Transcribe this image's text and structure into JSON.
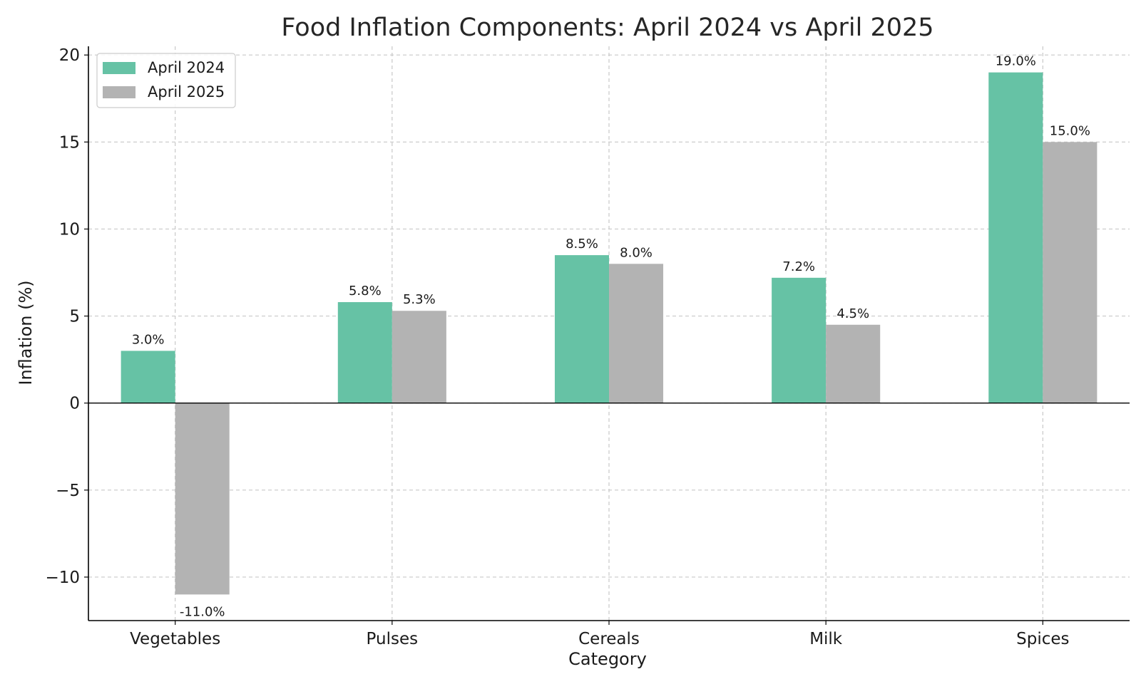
{
  "chart_data": {
    "type": "bar",
    "title": "Food Inflation Components: April 2024 vs April 2025",
    "xlabel": "Category",
    "ylabel": "Inflation (%)",
    "categories": [
      "Vegetables",
      "Pulses",
      "Cereals",
      "Milk",
      "Spices"
    ],
    "series": [
      {
        "name": "April 2024",
        "color": "#66c2a5",
        "values": [
          3.0,
          5.8,
          8.5,
          7.2,
          19.0
        ],
        "labels": [
          "3.0%",
          "5.8%",
          "8.5%",
          "7.2%",
          "19.0%"
        ]
      },
      {
        "name": "April 2025",
        "color": "#b3b3b3",
        "values": [
          -11.0,
          5.3,
          8.0,
          4.5,
          15.0
        ],
        "labels": [
          "-11.0%",
          "5.3%",
          "8.0%",
          "4.5%",
          "15.0%"
        ]
      }
    ],
    "ylim": [
      -12.5,
      20.5
    ],
    "yticks": [
      -10,
      -5,
      0,
      5,
      10,
      15,
      20
    ],
    "ytick_labels": [
      "−10",
      "−5",
      "0",
      "5",
      "10",
      "15",
      "20"
    ],
    "grid": true,
    "legend": "top-left"
  }
}
